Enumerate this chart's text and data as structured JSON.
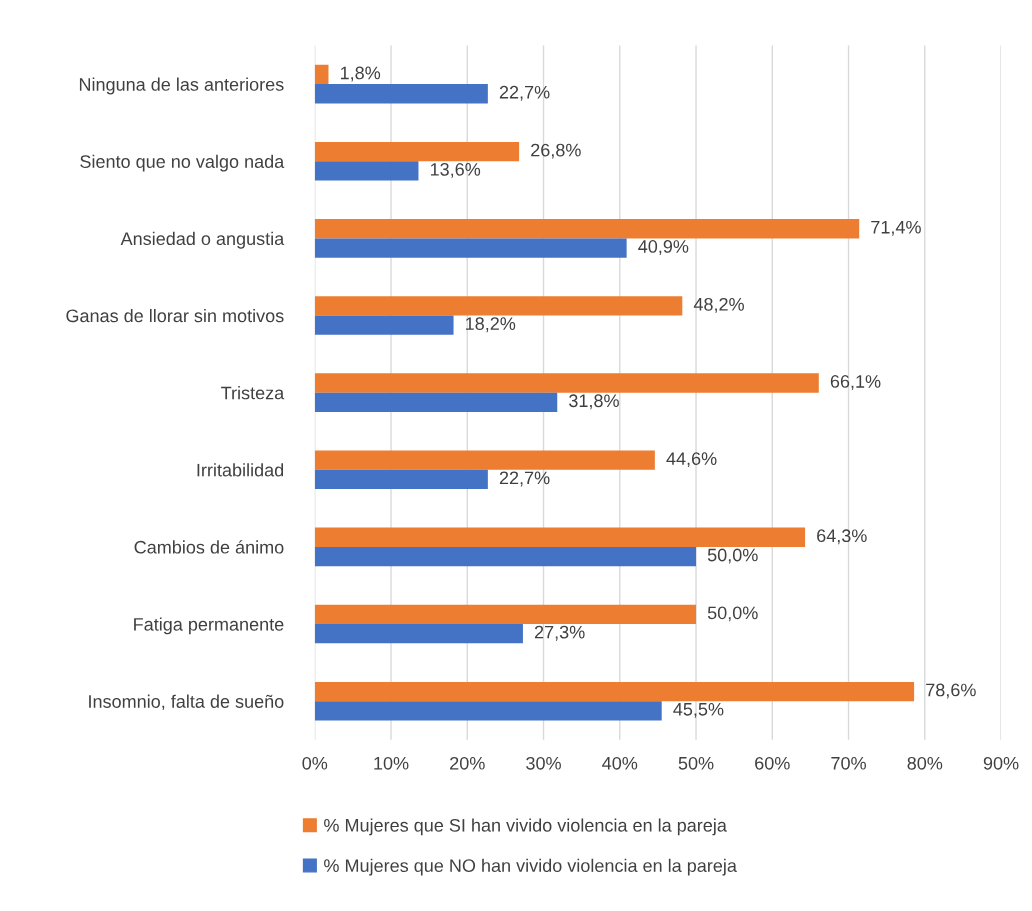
{
  "chart_data": {
    "type": "bar",
    "orientation": "horizontal",
    "categories": [
      "Ninguna de las anteriores",
      "Siento que no valgo nada",
      "Ansiedad o angustia",
      "Ganas de llorar sin motivos",
      "Tristeza",
      "Irritabilidad",
      "Cambios de ánimo",
      "Fatiga permanente",
      "Insomnio, falta de sueño"
    ],
    "series": [
      {
        "name": "% Mujeres que SI han vivido violencia en la pareja",
        "color": "#ed7d31",
        "values": [
          1.8,
          26.8,
          71.4,
          48.2,
          66.1,
          44.6,
          64.3,
          50.0,
          78.6
        ],
        "value_labels": [
          "1,8%",
          "26,8%",
          "71,4%",
          "48,2%",
          "66,1%",
          "44,6%",
          "64,3%",
          "50,0%",
          "78,6%"
        ]
      },
      {
        "name": "% Mujeres que NO han vivido violencia en la pareja",
        "color": "#4472c4",
        "values": [
          22.7,
          13.6,
          40.9,
          18.2,
          31.8,
          22.7,
          50.0,
          27.3,
          45.5
        ],
        "value_labels": [
          "22,7%",
          "13,6%",
          "40,9%",
          "18,2%",
          "31,8%",
          "22,7%",
          "50,0%",
          "27,3%",
          "45,5%"
        ]
      }
    ],
    "xlim": [
      0,
      90
    ],
    "xticks": [
      {
        "value": 0,
        "label": "0%"
      },
      {
        "value": 10,
        "label": "10%"
      },
      {
        "value": 20,
        "label": "20%"
      },
      {
        "value": 30,
        "label": "30%"
      },
      {
        "value": 40,
        "label": "40%"
      },
      {
        "value": 50,
        "label": "50%"
      },
      {
        "value": 60,
        "label": "60%"
      },
      {
        "value": 70,
        "label": "70%"
      },
      {
        "value": 80,
        "label": "80%"
      },
      {
        "value": 90,
        "label": "90%"
      }
    ],
    "grid": "x",
    "legend": "bottom"
  }
}
